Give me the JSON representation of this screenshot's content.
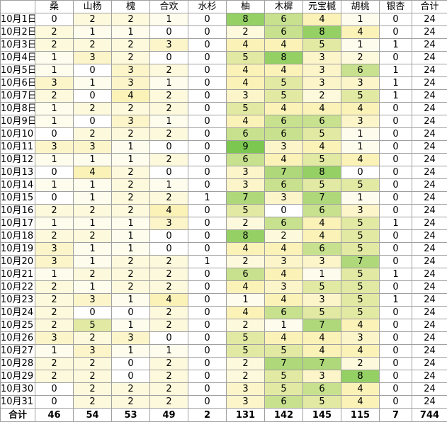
{
  "header": [
    "",
    "桑",
    "山杨",
    "槐",
    "合欢",
    "水杉",
    "柚",
    "木樨",
    "元宝槭",
    "胡桃",
    "银杏",
    "合计"
  ],
  "rows": [
    {
      "label": "10月1日",
      "values": [
        0,
        2,
        2,
        1,
        0,
        8,
        6,
        4,
        1,
        0,
        24
      ]
    },
    {
      "label": "10月2日",
      "values": [
        2,
        1,
        1,
        0,
        0,
        2,
        6,
        8,
        4,
        0,
        24
      ]
    },
    {
      "label": "10月3日",
      "values": [
        2,
        2,
        2,
        3,
        0,
        4,
        4,
        5,
        1,
        1,
        24
      ]
    },
    {
      "label": "10月4日",
      "values": [
        1,
        3,
        2,
        0,
        0,
        5,
        8,
        3,
        2,
        0,
        24
      ]
    },
    {
      "label": "10月5日",
      "values": [
        1,
        0,
        3,
        2,
        0,
        4,
        4,
        3,
        6,
        1,
        24
      ]
    },
    {
      "label": "10月6日",
      "values": [
        3,
        1,
        3,
        1,
        0,
        4,
        5,
        3,
        3,
        1,
        24
      ]
    },
    {
      "label": "10月7日",
      "values": [
        2,
        0,
        4,
        2,
        0,
        3,
        5,
        2,
        5,
        1,
        24
      ]
    },
    {
      "label": "10月8日",
      "values": [
        1,
        2,
        2,
        2,
        0,
        5,
        4,
        4,
        4,
        0,
        24
      ]
    },
    {
      "label": "10月9日",
      "values": [
        1,
        0,
        3,
        1,
        0,
        4,
        6,
        6,
        3,
        0,
        24
      ]
    },
    {
      "label": "10月10日",
      "values": [
        0,
        2,
        2,
        2,
        0,
        6,
        6,
        5,
        1,
        0,
        24
      ]
    },
    {
      "label": "10月11日",
      "values": [
        3,
        3,
        1,
        0,
        0,
        9,
        3,
        4,
        1,
        0,
        24
      ]
    },
    {
      "label": "10月12日",
      "values": [
        1,
        1,
        1,
        2,
        0,
        6,
        4,
        5,
        4,
        0,
        24
      ]
    },
    {
      "label": "10月13日",
      "values": [
        0,
        4,
        2,
        0,
        0,
        3,
        7,
        8,
        0,
        0,
        24
      ]
    },
    {
      "label": "10月14日",
      "values": [
        1,
        1,
        2,
        1,
        0,
        3,
        6,
        5,
        5,
        0,
        24
      ]
    },
    {
      "label": "10月15日",
      "values": [
        0,
        1,
        2,
        2,
        1,
        7,
        3,
        7,
        1,
        0,
        24
      ]
    },
    {
      "label": "10月16日",
      "values": [
        2,
        2,
        2,
        4,
        0,
        5,
        0,
        6,
        3,
        0,
        24
      ]
    },
    {
      "label": "10月17日",
      "values": [
        1,
        1,
        1,
        3,
        0,
        2,
        6,
        4,
        5,
        1,
        24
      ]
    },
    {
      "label": "10月18日",
      "values": [
        2,
        2,
        1,
        0,
        0,
        8,
        2,
        4,
        5,
        0,
        24
      ]
    },
    {
      "label": "10月19日",
      "values": [
        3,
        1,
        1,
        0,
        0,
        4,
        4,
        6,
        5,
        0,
        24
      ]
    },
    {
      "label": "10月20日",
      "values": [
        3,
        1,
        2,
        2,
        1,
        2,
        3,
        3,
        7,
        0,
        24
      ]
    },
    {
      "label": "10月21日",
      "values": [
        1,
        2,
        2,
        2,
        0,
        6,
        4,
        1,
        5,
        1,
        24
      ]
    },
    {
      "label": "10月22日",
      "values": [
        2,
        1,
        2,
        2,
        0,
        4,
        3,
        5,
        5,
        0,
        24
      ]
    },
    {
      "label": "10月23日",
      "values": [
        2,
        3,
        1,
        4,
        0,
        1,
        4,
        3,
        5,
        1,
        24
      ]
    },
    {
      "label": "10月24日",
      "values": [
        2,
        0,
        0,
        2,
        0,
        4,
        6,
        5,
        5,
        0,
        24
      ]
    },
    {
      "label": "10月25日",
      "values": [
        2,
        5,
        1,
        2,
        0,
        2,
        1,
        7,
        4,
        0,
        24
      ]
    },
    {
      "label": "10月26日",
      "values": [
        3,
        2,
        3,
        0,
        0,
        5,
        4,
        4,
        3,
        0,
        24
      ]
    },
    {
      "label": "10月27日",
      "values": [
        1,
        3,
        1,
        1,
        0,
        5,
        5,
        4,
        4,
        0,
        24
      ]
    },
    {
      "label": "10月28日",
      "values": [
        2,
        2,
        0,
        2,
        0,
        2,
        7,
        7,
        2,
        0,
        24
      ]
    },
    {
      "label": "10月29日",
      "values": [
        2,
        2,
        0,
        2,
        0,
        2,
        5,
        3,
        8,
        0,
        24
      ]
    },
    {
      "label": "10月30日",
      "values": [
        0,
        2,
        2,
        2,
        0,
        3,
        5,
        6,
        4,
        0,
        24
      ]
    },
    {
      "label": "10月31日",
      "values": [
        0,
        2,
        2,
        2,
        0,
        3,
        6,
        5,
        4,
        0,
        24
      ]
    }
  ],
  "total": {
    "label": "合计",
    "values": [
      46,
      54,
      53,
      49,
      2,
      131,
      142,
      145,
      115,
      7,
      744
    ]
  },
  "colors": {
    "scale_low": "#ffffff",
    "scale_mid": "#fbf2b8",
    "scale_high": "#7bc750",
    "border": "#a0a0a0"
  }
}
